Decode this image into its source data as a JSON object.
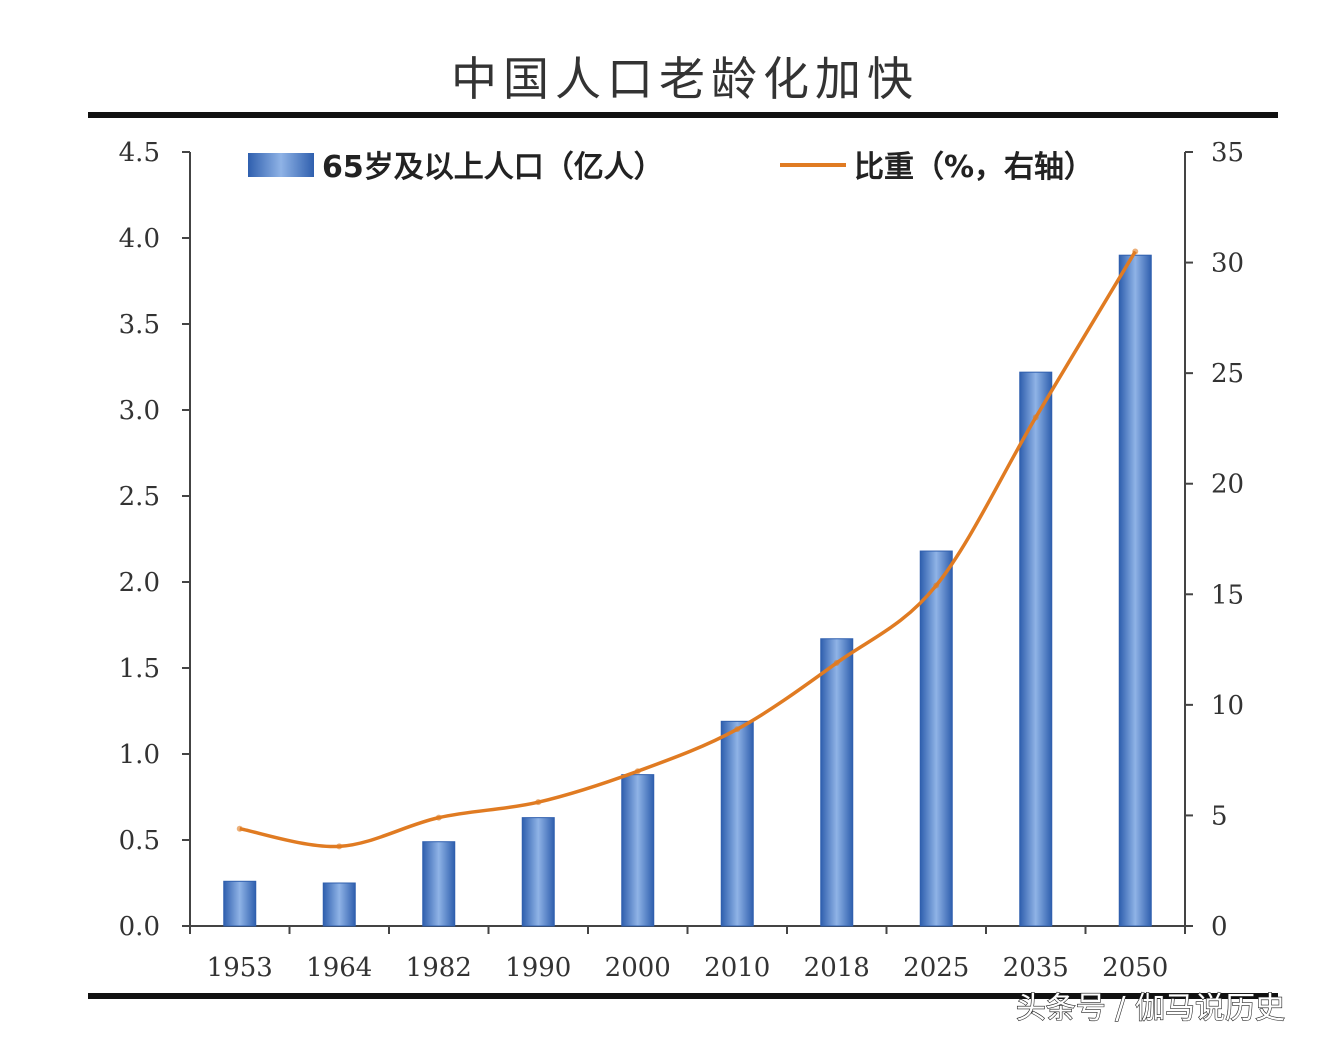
{
  "chart_data": {
    "type": "bar",
    "title": "中国人口老龄化加快",
    "categories": [
      "1953",
      "1964",
      "1982",
      "1990",
      "2000",
      "2010",
      "2018",
      "2025",
      "2035",
      "2050"
    ],
    "series": [
      {
        "name": "65岁及以上人口（亿人）",
        "type": "bar",
        "axis": "left",
        "values": [
          0.26,
          0.25,
          0.49,
          0.63,
          0.88,
          1.19,
          1.67,
          2.18,
          3.22,
          3.9
        ]
      },
      {
        "name": "比重（%，右轴）",
        "type": "line",
        "axis": "right",
        "values": [
          4.4,
          3.6,
          4.9,
          5.6,
          7.0,
          8.9,
          11.9,
          15.4,
          23.0,
          30.5
        ]
      }
    ],
    "y_left": {
      "ylim": [
        0,
        4.5
      ],
      "ticks": [
        "0.0",
        "0.5",
        "1.0",
        "1.5",
        "2.0",
        "2.5",
        "3.0",
        "3.5",
        "4.0",
        "4.5"
      ]
    },
    "y_right": {
      "ylim": [
        0,
        35
      ],
      "ticks": [
        "0",
        "5",
        "10",
        "15",
        "20",
        "25",
        "30",
        "35"
      ]
    },
    "legend_position": "top",
    "grid": false
  },
  "colors": {
    "bar_dark": "#2f5fae",
    "bar_light": "#8fb3e6",
    "line": "#e07b22",
    "axis": "#444444",
    "rule": "#111111"
  },
  "watermark": "头条号 / 伽马说历史"
}
